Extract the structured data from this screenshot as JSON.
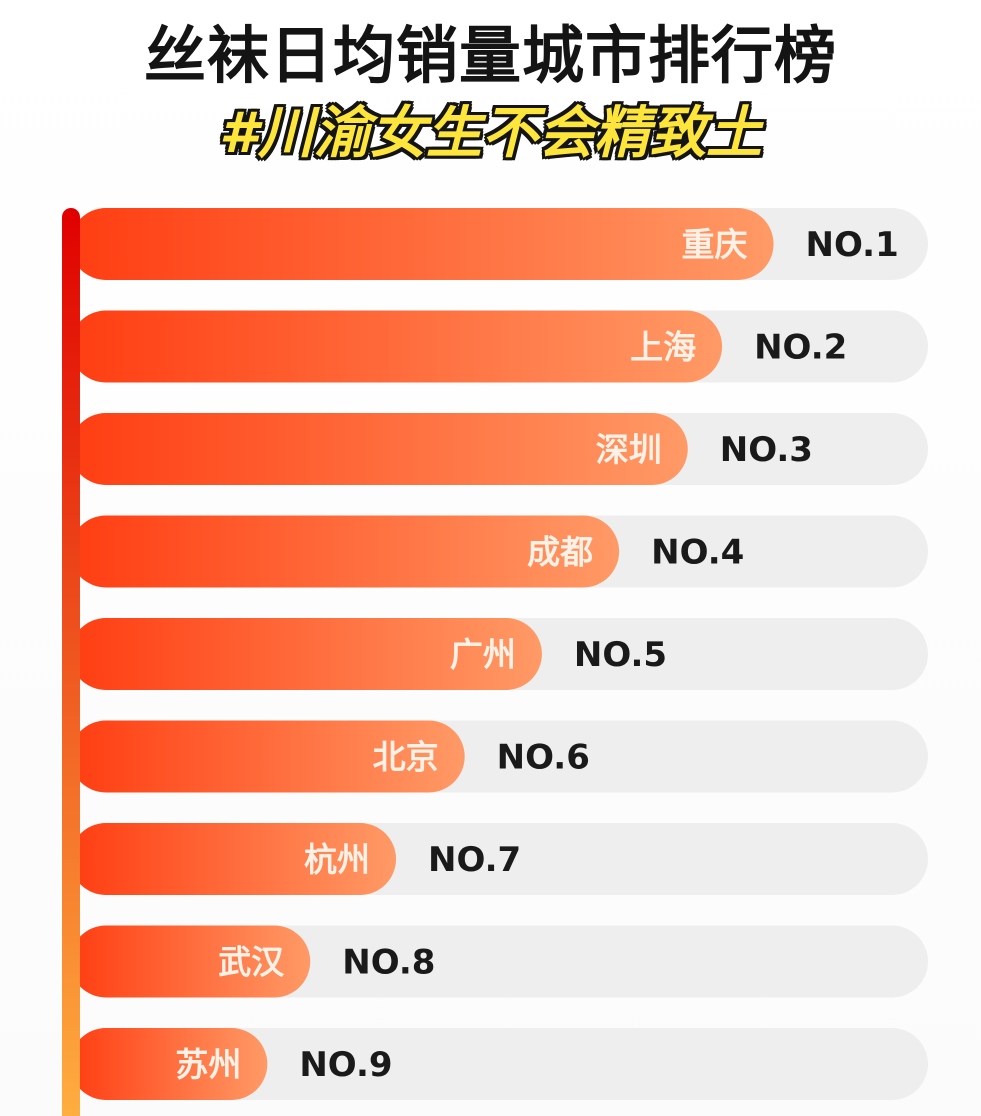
{
  "header": {
    "title": "丝袜日均销量城市排行榜",
    "subtitle": "#川渝女生不会精致土"
  },
  "colors": {
    "bar_start": "#ff3d12",
    "bar_end": "#ff9a66",
    "track": "#eeeeee",
    "axis_top": "#e00000",
    "axis_bottom": "#ffb040",
    "subtitle_fill": "#fde53b"
  },
  "chart_data": {
    "type": "bar",
    "orientation": "horizontal",
    "title": "丝袜日均销量城市排行榜",
    "subtitle": "#川渝女生不会精致土",
    "categories": [
      "重庆",
      "上海",
      "深圳",
      "成都",
      "广州",
      "北京",
      "杭州",
      "武汉",
      "苏州"
    ],
    "ranks": [
      "NO.1",
      "NO.2",
      "NO.3",
      "NO.4",
      "NO.5",
      "NO.6",
      "NO.7",
      "NO.8",
      "NO.9"
    ],
    "values": [
      0.82,
      0.76,
      0.72,
      0.64,
      0.55,
      0.46,
      0.38,
      0.28,
      0.23
    ],
    "value_unit": "relative bar length (fraction of full track)",
    "xlim": [
      0,
      1
    ],
    "grid": false,
    "legend": "none"
  }
}
